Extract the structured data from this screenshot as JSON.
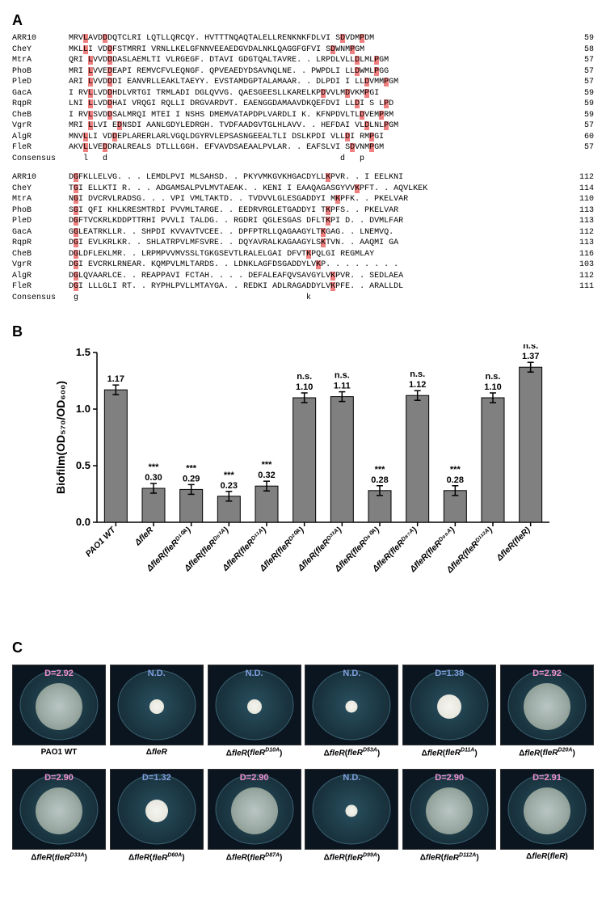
{
  "panelA": {
    "label": "A",
    "block1": {
      "rows": [
        {
          "name": "ARR10",
          "seq": "MRV<hl>L</hl>AVD<hl>D</hl>DQTCLRI LQTLLQRCQY. HVTTTNQAQTALELLRENKNKFDLVI S<hl>D</hl>VDM<hl>P</hl>DM",
          "num": "59"
        },
        {
          "name": "CheY",
          "seq": "MKL<hl>L</hl>I VD<hl>D</hl>FSTMRRI VRNLLKELGFNNVEEAEDGVDALNKLQAGGFGFVI S<hl>D</hl>WNM<hl>P</hl>GM",
          "num": "58"
        },
        {
          "name": "MtrA",
          "seq": "QRI <hl>L</hl>VVD<hl>D</hl>DASLAEMLTI VLRGEGF. DTAVI GDGTQALTAVRE. . LRPDLVLL<hl>D</hl>LML<hl>P</hl>GM",
          "num": "57"
        },
        {
          "name": "PhoB",
          "seq": "MRI <hl>L</hl>VVE<hl>D</hl>EAPI REMVCFVLEQNGF. QPVEAEDYDSAVNQLNE. . PWPDLI LL<hl>D</hl>WML<hl>P</hl>GG",
          "num": "57"
        },
        {
          "name": "PleD",
          "seq": "ARI <hl>L</hl>VVD<hl>D</hl>DI EANVRLLEAKLTAEYY. EVSTAMDGPTALAMAAR. . DLPDI I LL<hl>D</hl>VMM<hl>P</hl>GM",
          "num": "57"
        },
        {
          "name": "GacA",
          "seq": "I RV<hl>L</hl>LVD<hl>D</hl>HDLVRTGI TRMLADI DGLQVVG. QAESGEESLLKARELKP<hl>D</hl>VVLM<hl>D</hl>VKM<hl>P</hl>GI",
          "num": "59"
        },
        {
          "name": "RqpR",
          "seq": "LNI <hl>L</hl>LVD<hl>D</hl>HAI VRQGI RQLLI DRGVARDVT. EAENGGDAMAAVDKQEFDVI LL<hl>D</hl>I S L<hl>P</hl>D",
          "num": "59"
        },
        {
          "name": "CheB",
          "seq": "I RV<hl>L</hl>SVD<hl>D</hl>SALMRQI MTEI I NSHS DMEMVATAPDPLVARDLI K. KFNPDVLTL<hl>D</hl>VEM<hl>P</hl>RM",
          "num": "59"
        },
        {
          "name": "VgrR",
          "seq": "MRI <hl>L</hl>LVI E<hl>D</hl>NSDI AANLGDYLEDRGH. TVDFAADGVTGLHLAVV. . HEFDAI VL<hl>D</hl>LNL<hl>P</hl>GM",
          "num": "57"
        },
        {
          "name": "AlgR",
          "seq": "MNV<hl>L</hl>LI VD<hl>D</hl>EPLARERLARLVGQLDGYRVLEPSASNGEEALTLI DSLKPDI VLL<hl>D</hl>I RM<hl>P</hl>GI",
          "num": "60"
        },
        {
          "name": "FleR",
          "seq": "AKV<hl>L</hl>LVE<hl>D</hl>DRALREALS DTLLLGGH. EFVAVDSAEAALPVLAR. . EAFSLVI S<hl>D</hl>VNM<hl>P</hl>GM",
          "num": "57"
        },
        {
          "name": "Consensus",
          "seq": "   l   d                                                d   p",
          "num": ""
        }
      ]
    },
    "block2": {
      "rows": [
        {
          "name": "ARR10",
          "seq": "D<hl>G</hl>FKLLELVG. . . LEMDLPVI MLSAHSD. . PKYVMKGVKHGACDYLL<hl>K</hl>PVR. . I EELKNI",
          "num": "112"
        },
        {
          "name": "CheY",
          "seq": "T<hl>G</hl>I ELLKTI R. . . ADGAMSALPVLMVTAEAK. . KENI I EAAQAGASGYVV<hl>K</hl>PFT. . AQVLKEK",
          "num": "114"
        },
        {
          "name": "MtrA",
          "seq": "N<hl>G</hl>I DVCRVLRADSG. . . VPI VMLTAKTD. . TVDVVLGLESGADDYI M<hl>K</hl>PFK. . PKELVAR",
          "num": "110"
        },
        {
          "name": "PhoB",
          "seq": "S<hl>G</hl>I QFI KHLKRESMTRDI PVVMLTARGE. . EEDRVRGLETGADDYI T<hl>K</hl>PFS. . PKELVAR",
          "num": "113"
        },
        {
          "name": "PleD",
          "seq": "D<hl>G</hl>FTVCKRLKDDPTTRHI PVVLI TALDG. . RGDRI QGLESGAS DFLT<hl>K</hl>PI D. . DVMLFAR",
          "num": "113"
        },
        {
          "name": "GacA",
          "seq": "G<hl>G</hl>LEATRKLLR. . SHPDI KVVAVTVCEE. . DPFPTRLLQAGAAGYLT<hl>K</hl>GAG. . LNEMVQ.",
          "num": "112"
        },
        {
          "name": "RqpR",
          "seq": "D<hl>G</hl>I EVLKRLKR. . SHLATRPVLMFSVRE. . DQYAVRALKAGAAGYLS<hl>K</hl>TVN. . AAQMI GA",
          "num": "113"
        },
        {
          "name": "CheB",
          "seq": "D<hl>G</hl>LDFLEKLMR. . LRPMPVVMVSSLTGKGSEVTLRALELGAI DFVT<hl>K</hl>PQLGI REGMLAY",
          "num": "116"
        },
        {
          "name": "VgrR",
          "seq": "D<hl>G</hl>I EVCRKLRNEAR. KQMPVLMLTARDS. . LDNKLAGFDSGADDYLV<hl>K</hl>P. . . . . . . .",
          "num": "103"
        },
        {
          "name": "AlgR",
          "seq": "D<hl>G</hl>LQVAARLCE. . REAPPAVI FCTAH. . . . DEFALEAFQVSAVGYLV<hl>K</hl>PVR. . SEDLAEA",
          "num": "112"
        },
        {
          "name": "FleR",
          "seq": "D<hl>G</hl>I LLLGLI RT. . RYPHLPVLLMTAYGA. . REDKI ADLRAGADDYLV<hl>K</hl>PFE. . ARALLDL",
          "num": "111"
        },
        {
          "name": "Consensus",
          "seq": " g                                               k",
          "num": ""
        }
      ]
    }
  },
  "panelB": {
    "label": "B",
    "ylabel": "Biofilm(OD₅₇₀/OD₆₀₀)",
    "ymax": 1.5,
    "ytick_step": 0.5,
    "background_color": "#ffffff",
    "bar_color": "#808080",
    "bars": [
      {
        "label": "PAO1 WT",
        "value": 1.17,
        "text": "1.17",
        "sig": ""
      },
      {
        "label": "ΔfleR",
        "value": 0.3,
        "text": "0.30",
        "sig": "***"
      },
      {
        "label": "ΔfleR(fleRᴰ¹⁰ᴬ)",
        "value": 0.29,
        "text": "0.29",
        "sig": "***"
      },
      {
        "label": "ΔfleR(fleRᴰ⁵³ᴬ)",
        "value": 0.23,
        "text": "0.23",
        "sig": "***"
      },
      {
        "label": "ΔfleR(fleRᴰ¹¹ᴬ)",
        "value": 0.32,
        "text": "0.32",
        "sig": "***"
      },
      {
        "label": "ΔfleR(fleRᴰ²⁰ᴬ)",
        "value": 1.1,
        "text": "1.10",
        "sig": "n.s."
      },
      {
        "label": "ΔfleR(fleRᴰ³³ᴬ)",
        "value": 1.11,
        "text": "1.11",
        "sig": "n.s."
      },
      {
        "label": "ΔfleR(fleRᴰ⁶⁰ᴬ)",
        "value": 0.28,
        "text": "0.28",
        "sig": "***"
      },
      {
        "label": "ΔfleR(fleRᴰ⁸⁷ᴬ)",
        "value": 1.12,
        "text": "1.12",
        "sig": "n.s."
      },
      {
        "label": "ΔfleR(fleRᴰ⁹⁹ᴬ)",
        "value": 0.28,
        "text": "0.28",
        "sig": "***"
      },
      {
        "label": "ΔfleR(fleRᴰ¹¹²ᴬ)",
        "value": 1.1,
        "text": "1.10",
        "sig": "n.s."
      },
      {
        "label": "ΔfleR(fleR)",
        "value": 1.37,
        "text": "1.37",
        "sig": "n.s."
      }
    ]
  },
  "panelC": {
    "label": "C",
    "row1": [
      {
        "d": "D=2.92",
        "color": "pink",
        "size": 58,
        "caption": "PAO1 WT"
      },
      {
        "d": "N.D.",
        "color": "blue",
        "size": 18,
        "caption": "Δ<em>fleR</em>"
      },
      {
        "d": "N.D.",
        "color": "blue",
        "size": 18,
        "caption": "Δ<em>fleR</em>(<em>fleR<sup>D10A</sup></em>)"
      },
      {
        "d": "N.D.",
        "color": "blue",
        "size": 15,
        "caption": "Δ<em>fleR</em>(<em>fleR<sup>D53A</sup></em>)"
      },
      {
        "d": "D=1.38",
        "color": "blue",
        "size": 30,
        "caption": "Δ<em>fleR</em>(<em>fleR<sup>D11A</sup></em>)"
      },
      {
        "d": "D=2.92",
        "color": "pink",
        "size": 58,
        "caption": "Δ<em>fleR</em>(<em>fleR<sup>D20A</sup></em>)"
      }
    ],
    "row2": [
      {
        "d": "D=2.90",
        "color": "pink",
        "size": 58,
        "caption": "Δ<em>fleR</em>(<em>fleR<sup>D33A</sup></em>)"
      },
      {
        "d": "D=1.32",
        "color": "blue",
        "size": 28,
        "caption": "Δ<em>fleR</em>(<em>fleR<sup>D60A</sup></em>)"
      },
      {
        "d": "D=2.90",
        "color": "pink",
        "size": 58,
        "caption": "Δ<em>fleR</em>(<em>fleR<sup>D87A</sup></em>)"
      },
      {
        "d": "N.D.",
        "color": "blue",
        "size": 15,
        "caption": "Δ<em>fleR</em>(<em>fleR<sup>D99A</sup></em>)"
      },
      {
        "d": "D=2.90",
        "color": "pink",
        "size": 58,
        "caption": "Δ<em>fleR</em>(<em>fleR<sup>D112A</sup></em>)"
      },
      {
        "d": "D=2.91",
        "color": "pink",
        "size": 58,
        "caption": "Δ<em>fleR</em>(<em>fleR</em>)"
      }
    ]
  }
}
